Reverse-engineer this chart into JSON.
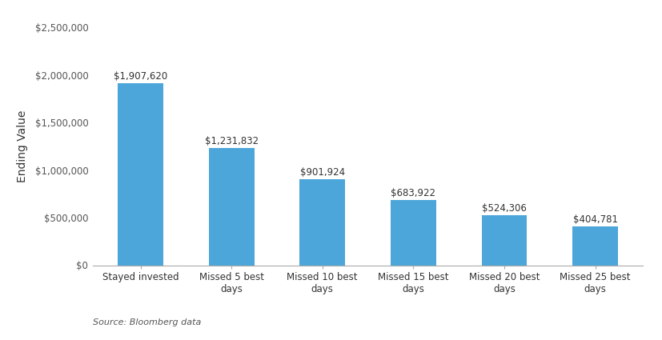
{
  "categories": [
    "Stayed invested",
    "Missed 5 best\ndays",
    "Missed 10 best\ndays",
    "Missed 15 best\ndays",
    "Missed 20 best\ndays",
    "Missed 25 best\ndays"
  ],
  "values": [
    1907620,
    1231832,
    901924,
    683922,
    524306,
    404781
  ],
  "labels": [
    "$1,907,620",
    "$1,231,832",
    "$901,924",
    "$683,922",
    "$524,306",
    "$404,781"
  ],
  "bar_color": "#4da6d9",
  "ylabel": "Ending Value",
  "ylim": [
    0,
    2500000
  ],
  "yticks": [
    0,
    500000,
    1000000,
    1500000,
    2000000,
    2500000
  ],
  "ytick_labels": [
    "$0",
    "$500,000",
    "$1,000,000",
    "$1,500,000",
    "$2,000,000",
    "$2,500,000"
  ],
  "source_text": "Source: Bloomberg data",
  "background_color": "#ffffff",
  "bar_width": 0.5,
  "label_fontsize": 8.5,
  "axis_label_fontsize": 10,
  "tick_fontsize": 8.5,
  "source_fontsize": 8
}
